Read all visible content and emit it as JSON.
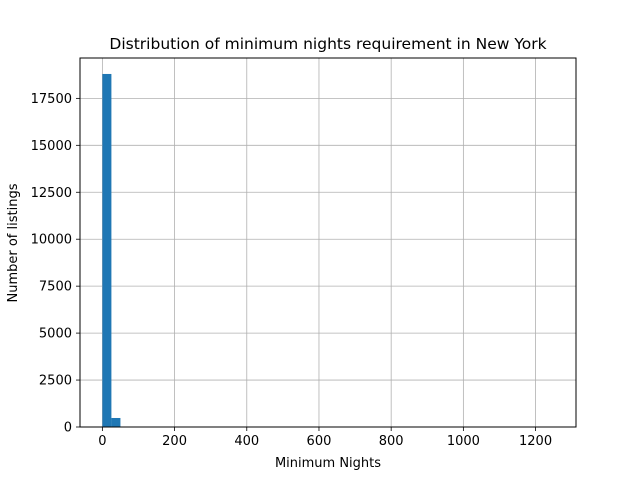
{
  "chart_data": {
    "type": "bar",
    "title": "Distribution of minimum nights requirement in New York",
    "xlabel": "Minimum Nights",
    "ylabel": "Number of listings",
    "xlim": [
      -62,
      1312
    ],
    "ylim": [
      0,
      19650
    ],
    "grid": true,
    "bar_color": "#1f77b4",
    "bin_width": 25,
    "bins": [
      {
        "x0": 0,
        "x1": 25,
        "count": 18800
      },
      {
        "x0": 25,
        "x1": 50,
        "count": 480
      }
    ],
    "x_ticks": [
      0,
      200,
      400,
      600,
      800,
      1000,
      1200
    ],
    "x_tick_labels": [
      "0",
      "200",
      "400",
      "600",
      "800",
      "1000",
      "1200"
    ],
    "y_ticks": [
      0,
      2500,
      5000,
      7500,
      10000,
      12500,
      15000,
      17500
    ],
    "y_tick_labels": [
      "0",
      "2500",
      "5000",
      "7500",
      "10000",
      "12500",
      "15000",
      "17500"
    ]
  }
}
